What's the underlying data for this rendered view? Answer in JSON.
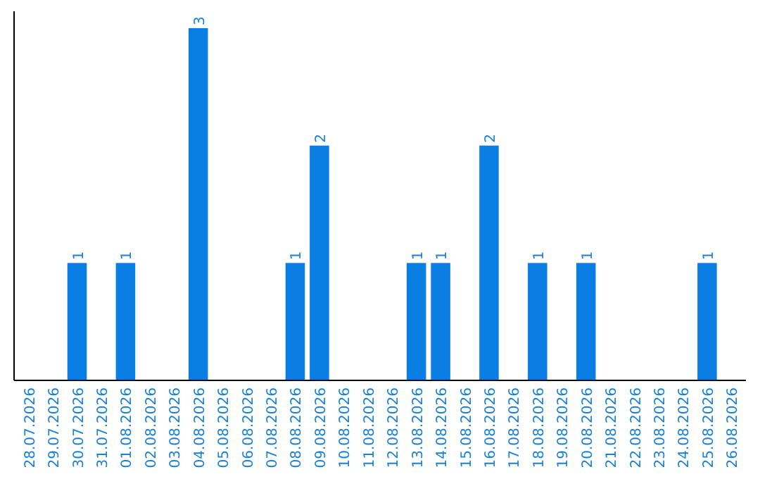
{
  "chart_data": {
    "type": "bar",
    "categories": [
      "28.07.2026",
      "29.07.2026",
      "30.07.2026",
      "31.07.2026",
      "01.08.2026",
      "02.08.2026",
      "03.08.2026",
      "04.08.2026",
      "05.08.2026",
      "06.08.2026",
      "07.08.2026",
      "08.08.2026",
      "09.08.2026",
      "10.08.2026",
      "11.08.2026",
      "12.08.2026",
      "13.08.2026",
      "14.08.2026",
      "15.08.2026",
      "16.08.2026",
      "17.08.2026",
      "18.08.2026",
      "19.08.2026",
      "20.08.2026",
      "21.08.2026",
      "22.08.2026",
      "23.08.2026",
      "24.08.2026",
      "25.08.2026",
      "26.08.2026"
    ],
    "values": [
      0,
      0,
      1,
      0,
      1,
      0,
      0,
      3,
      0,
      0,
      0,
      1,
      2,
      0,
      0,
      0,
      1,
      1,
      0,
      2,
      0,
      1,
      0,
      1,
      0,
      0,
      0,
      0,
      1,
      0
    ],
    "value_labels": [
      null,
      null,
      "1",
      null,
      "1",
      null,
      null,
      "3",
      null,
      null,
      null,
      "1",
      "2",
      null,
      null,
      null,
      "1",
      "1",
      null,
      "2",
      null,
      "1",
      null,
      "1",
      null,
      null,
      null,
      null,
      "1",
      null
    ],
    "color": "#0a7ee3"
  }
}
